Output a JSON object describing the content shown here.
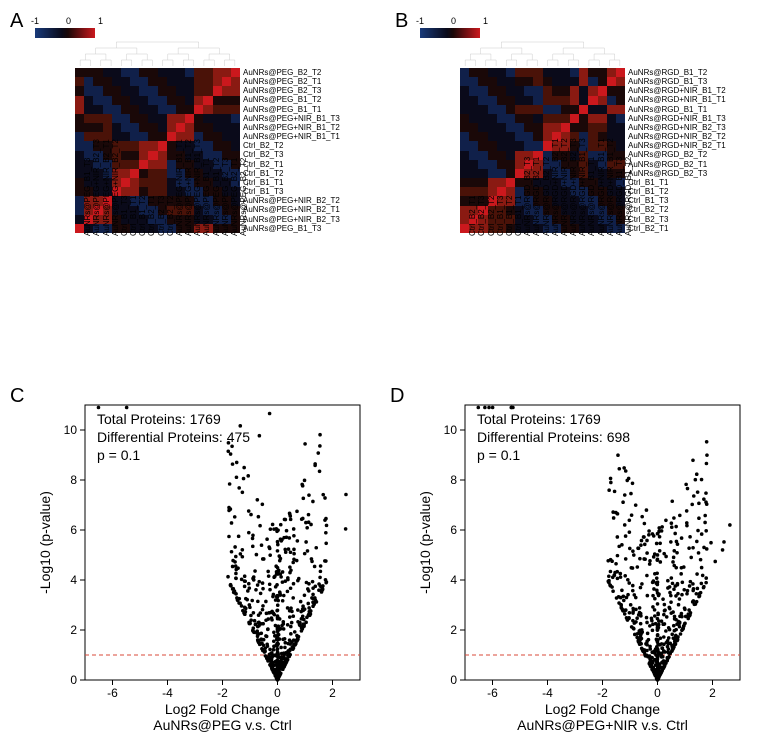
{
  "panel_labels": {
    "A": "A",
    "B": "B",
    "C": "C",
    "D": "D"
  },
  "colorbar": {
    "min": -1,
    "mid": 0,
    "max": 1,
    "colors": [
      "#08306b",
      "#000000",
      "#cb181d"
    ],
    "label_min": "-1",
    "label_mid": "0",
    "label_max": "1"
  },
  "panelA": {
    "n": 18,
    "row_labels": [
      "AuNRs@PEG_B2_T2",
      "AuNRs@PEG_B2_T1",
      "AuNRs@PEG_B2_T3",
      "AuNRs@PEG_B1_T2",
      "AuNRs@PEG_B1_T1",
      "AuNRs@PEG+NIR_B1_T3",
      "AuNRs@PEG+NIR_B1_T2",
      "AuNRs@PEG+NIR_B1_T1",
      "Ctrl_B2_T2",
      "Ctrl_B2_T3",
      "Ctrl_B2_T1",
      "Ctrl_B1_T2",
      "Ctrl_B1_T1",
      "Ctrl_B1_T3",
      "AuNRs@PEG+NIR_B2_T2",
      "AuNRs@PEG+NIR_B2_T1",
      "AuNRs@PEG+NIR_B2_T3",
      "AuNRs@PEG_B1_T3"
    ],
    "col_labels": [
      "AuNRs@PEG_B1_T3",
      "AuNRs@PEG+NIR_B2_T3",
      "AuNRs@PEG+NIR_B2_T1",
      "AuNRs@PEG+NIR_B2_T2",
      "Ctrl_B1_T3",
      "Ctrl_B1_T1",
      "Ctrl_B1_T2",
      "Ctrl_B2_T1",
      "Ctrl_B2_T3",
      "Ctrl_B2_T2",
      "AuNRs@PEG+NIR_B1_T1",
      "AuNRs@PEG+NIR_B1_T2",
      "AuNRs@PEG+NIR_B1_T3",
      "AuNRs@PEG_B1_T1",
      "AuNRs@PEG_B1_T2",
      "AuNRs@PEG_B2_T3",
      "AuNRs@PEG_B2_T1",
      "AuNRs@PEG_B2_T2"
    ]
  },
  "panelB": {
    "n": 18,
    "row_labels": [
      "AuNRs@RGD_B1_T2",
      "AuNRs@RGD_B1_T3",
      "AuNRs@RGD+NIR_B1_T2",
      "AuNRs@RGD+NIR_B1_T1",
      "AuNRs@RGD_B1_T1",
      "AuNRs@RGD+NIR_B1_T3",
      "AuNRs@RGD+NIR_B2_T3",
      "AuNRs@RGD+NIR_B2_T2",
      "AuNRs@RGD+NIR_B2_T1",
      "AuNRs@RGD_B2_T2",
      "AuNRs@RGD_B2_T1",
      "AuNRs@RGD_B2_T3",
      "Ctrl_B1_T1",
      "Ctrl_B1_T2",
      "Ctrl_B1_T3",
      "Ctrl_B2_T2",
      "Ctrl_B2_T3",
      "Ctrl_B2_T1"
    ],
    "col_labels": [
      "Ctrl_B2_T1",
      "Ctrl_B2_T3",
      "Ctrl_B2_T2",
      "Ctrl_B1_T3",
      "Ctrl_B1_T2",
      "Ctrl_B1_T1",
      "AuNRs@RGD_B2_T3",
      "AuNRs@RGD_B2_T1",
      "AuNRs@RGD_B2_T2",
      "AuNRs@RGD+NIR_B2_T1",
      "AuNRs@RGD+NIR_B2_T2",
      "AuNRs@RGD+NIR_B2_T3",
      "AuNRs@RGD+NIR_B1_T3",
      "AuNRs@RGD_B1_T1",
      "AuNRs@RGD+NIR_B1_T1",
      "AuNRs@RGD+NIR_B1_T2",
      "AuNRs@RGD_B1_T3",
      "AuNRs@RGD_B1_T2"
    ]
  },
  "panelC": {
    "total_label": "Total Proteins: 1769",
    "diff_label": "Differential Proteins: 475",
    "p_label": "p = 0.1",
    "xlabel1": "Log2 Fold Change",
    "xlabel2": "AuNRs@PEG v.s. Ctrl",
    "ylabel": "-Log10 (p-value)",
    "xlim": [
      -7,
      3
    ],
    "xticks": [
      -6,
      -4,
      -2,
      0,
      2
    ],
    "ylim": [
      0,
      11
    ],
    "yticks": [
      0,
      2,
      4,
      6,
      8,
      10
    ],
    "threshold_y": 1,
    "threshold_color": "#d94a3a",
    "point_color": "#000000",
    "n_points": 1769
  },
  "panelD": {
    "total_label": "Total Proteins: 1769",
    "diff_label": "Differential Proteins: 698",
    "p_label": "p = 0.1",
    "xlabel1": "Log2 Fold Change",
    "xlabel2": "AuNRs@PEG+NIR v.s. Ctrl",
    "ylabel": "-Log10 (p-value)",
    "xlim": [
      -7,
      3
    ],
    "xticks": [
      -6,
      -4,
      -2,
      0,
      2
    ],
    "ylim": [
      0,
      11
    ],
    "yticks": [
      0,
      2,
      4,
      6,
      8,
      10
    ],
    "threshold_y": 1,
    "threshold_color": "#d94a3a",
    "point_color": "#000000",
    "n_points": 1769
  },
  "heatmap_style": {
    "diag_color": "#cb181d",
    "near_color": "#7a1510",
    "far_color": "#1a2a5a",
    "mid_color": "#0a0a1a",
    "cell_border": "none"
  }
}
